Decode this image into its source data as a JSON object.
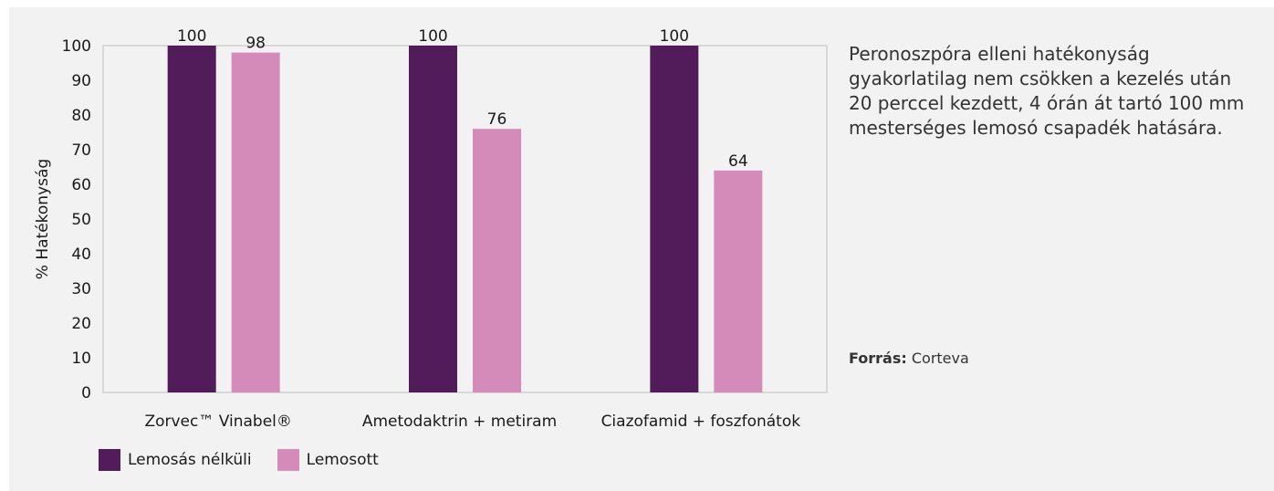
{
  "chart_data": {
    "type": "bar",
    "categories": [
      "Zorvec™ Vinabel®",
      "Ametodaktrin + metiram",
      "Ciazofamid + foszfonátok"
    ],
    "series": [
      {
        "name": "Lemosás nélküli",
        "values": [
          100,
          100,
          100
        ],
        "color": "#521b59"
      },
      {
        "name": "Lemosott",
        "values": [
          98,
          76,
          64
        ],
        "color": "#d48bba"
      }
    ],
    "ylabel": "% Hatékonyság",
    "ylim": [
      0,
      100
    ],
    "yticks": [
      0,
      10,
      20,
      30,
      40,
      50,
      60,
      70,
      80,
      90,
      100
    ],
    "data_labels": true,
    "grid": false,
    "legend": "bottom-left"
  },
  "description": "Peronoszpóra elleni hatékonyság gyakorlatilag nem csökken a kezelés után 20 perccel kezdett, 4 órán át tartó 100 mm mesterséges lemosó csapadék hatására.",
  "source": {
    "label": "Forrás:",
    "value": " Corteva"
  }
}
